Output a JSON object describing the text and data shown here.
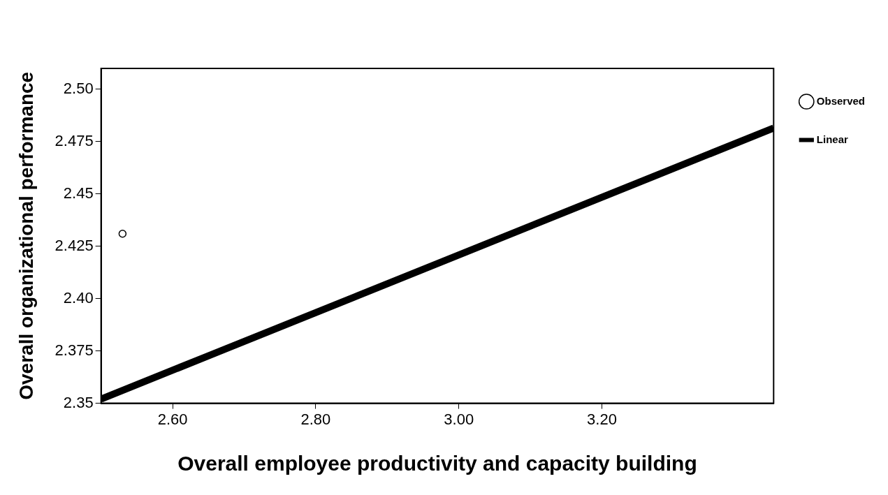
{
  "chart_data": {
    "type": "scatter",
    "xlabel": "Overall employee productivity and capacity building",
    "ylabel": "Overall organizational performance",
    "xlim": [
      2.5,
      3.44
    ],
    "xticks": [
      {
        "value": 2.6,
        "label": "2.60"
      },
      {
        "value": 2.8,
        "label": "2.80"
      },
      {
        "value": 3.0,
        "label": "3.00"
      },
      {
        "value": 3.2,
        "label": "3.20"
      }
    ],
    "ylim": [
      2.35,
      2.51
    ],
    "yticks": [
      2.35,
      2.375,
      {
        "value": 2.4,
        "label": "2.40"
      },
      2.425,
      2.45,
      2.475,
      {
        "value": 2.5,
        "label": "2.50"
      }
    ],
    "grid": false,
    "legend": "top right",
    "series": [
      {
        "name": "Observed",
        "color": "#000000",
        "marker": "circle",
        "x": [
          2.53
        ],
        "values": [
          2.431
        ]
      },
      {
        "name": "Linear",
        "type": "line",
        "color": "#000000",
        "marker": "none",
        "x": [
          2.5,
          3.44
        ],
        "values": [
          2.352,
          2.4815
        ]
      }
    ]
  }
}
